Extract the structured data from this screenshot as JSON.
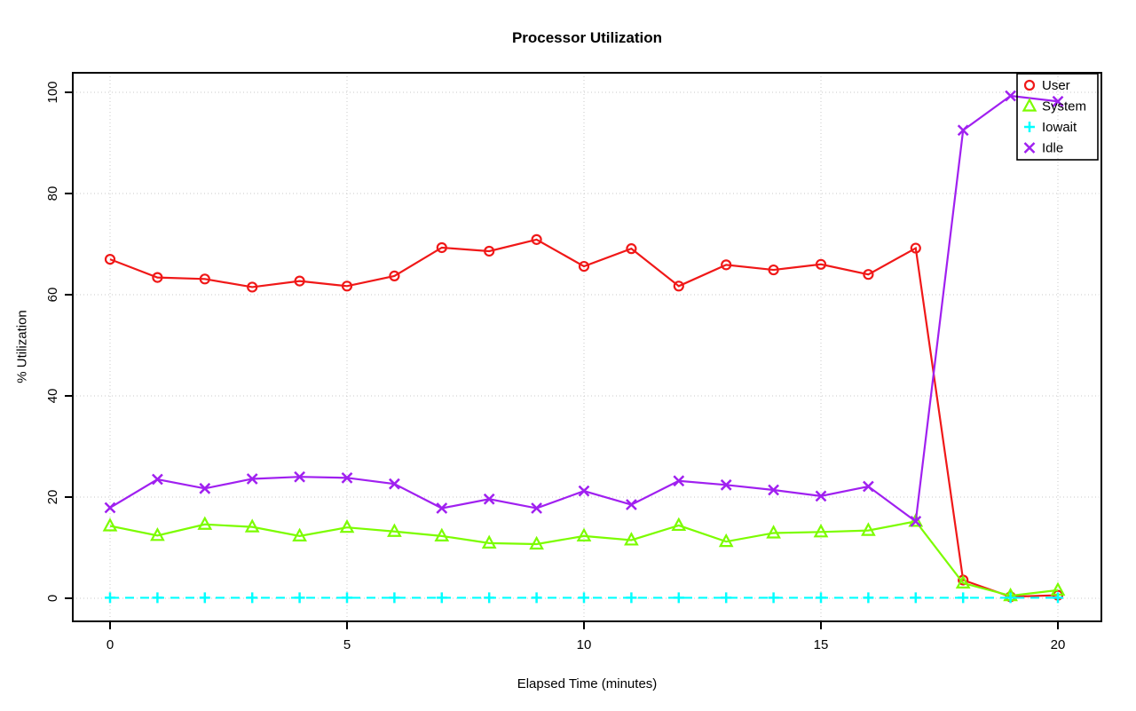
{
  "chart_data": {
    "type": "line",
    "title": "Processor Utilization",
    "xlabel": "Elapsed Time (minutes)",
    "ylabel": "% Utilization",
    "x": [
      0,
      1,
      2,
      3,
      4,
      5,
      6,
      7,
      8,
      9,
      10,
      11,
      12,
      13,
      14,
      15,
      16,
      17,
      18,
      19,
      20
    ],
    "series": [
      {
        "name": "User",
        "color": "#F01818",
        "marker": "circle",
        "linestyle": "solid",
        "values": [
          67.0,
          63.4,
          63.1,
          61.5,
          62.7,
          61.7,
          63.7,
          69.3,
          68.6,
          70.9,
          65.6,
          69.1,
          61.7,
          65.9,
          64.9,
          66.0,
          64.0,
          69.2,
          3.6,
          0.3,
          0.6
        ]
      },
      {
        "name": "System",
        "color": "#7CFC00",
        "marker": "triangle",
        "linestyle": "solid",
        "values": [
          14.3,
          12.4,
          14.6,
          14.1,
          12.3,
          14.0,
          13.2,
          12.3,
          10.9,
          10.7,
          12.3,
          11.5,
          14.4,
          11.2,
          12.9,
          13.1,
          13.4,
          15.2,
          3.0,
          0.5,
          1.6
        ]
      },
      {
        "name": "Iowait",
        "color": "#00FFFF",
        "marker": "plus",
        "linestyle": "dashed",
        "values": [
          0.1,
          0.1,
          0.1,
          0.1,
          0.1,
          0.1,
          0.1,
          0.1,
          0.1,
          0.1,
          0.1,
          0.1,
          0.1,
          0.1,
          0.1,
          0.1,
          0.1,
          0.1,
          0.1,
          0.1,
          0.1
        ]
      },
      {
        "name": "Idle",
        "color": "#A020F0",
        "marker": "x",
        "linestyle": "solid",
        "values": [
          17.9,
          23.5,
          21.7,
          23.6,
          24.0,
          23.8,
          22.6,
          17.8,
          19.6,
          17.8,
          21.2,
          18.5,
          23.2,
          22.4,
          21.4,
          20.2,
          22.1,
          15.2,
          92.5,
          99.3,
          98.2
        ]
      }
    ],
    "x_ticks": [
      0,
      5,
      10,
      15,
      20
    ],
    "y_ticks": [
      0,
      20,
      40,
      60,
      80,
      100
    ],
    "xlim": [
      -0.8,
      20.9
    ],
    "ylim": [
      -4.6,
      103.9
    ],
    "grid": true,
    "grid_color": "#C8C8C8",
    "legend_position": "top-right"
  }
}
